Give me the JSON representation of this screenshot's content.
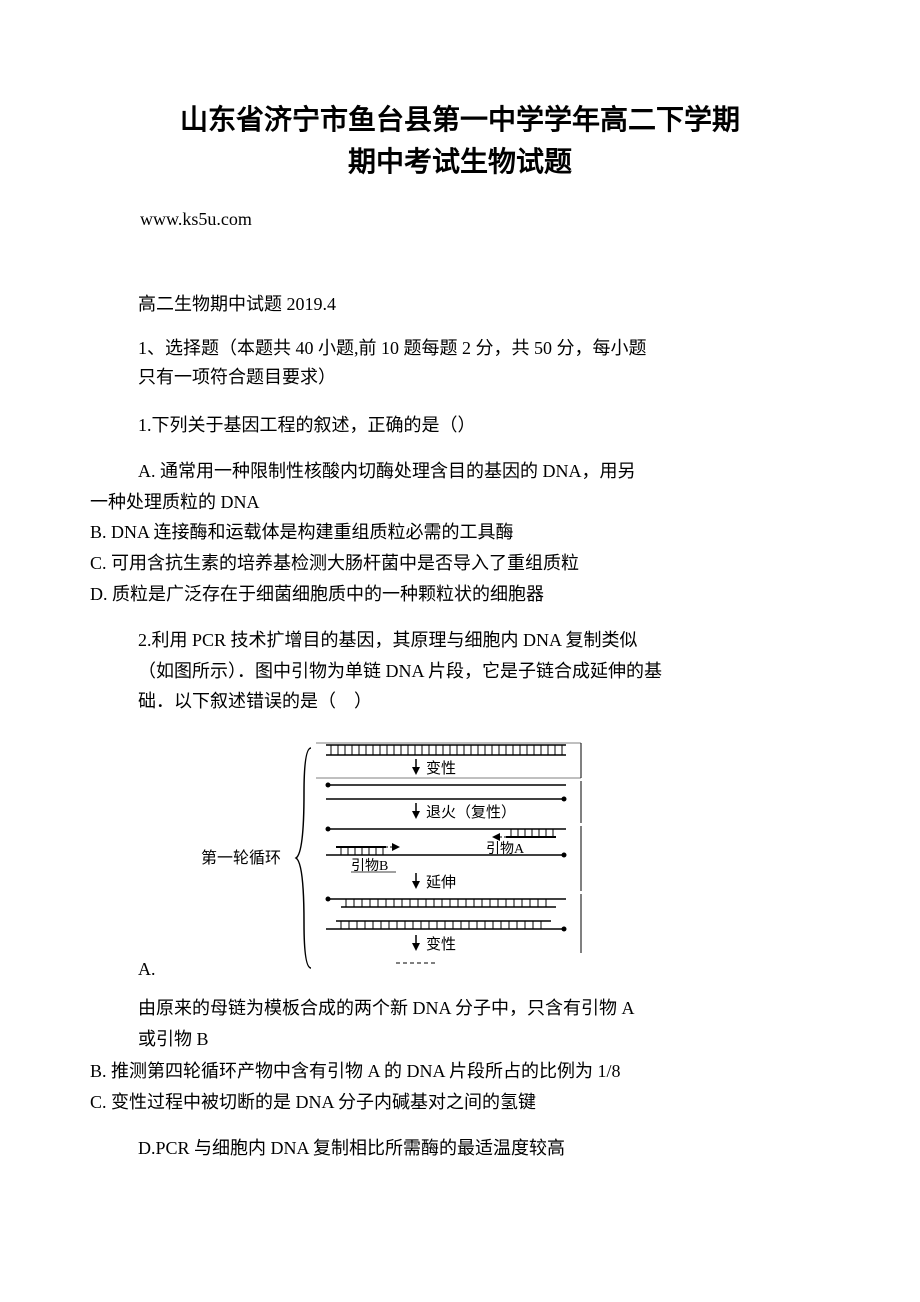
{
  "title": "山东省济宁市鱼台县第一中学学年高二下学期\n期中考试生物试题",
  "url": "www.ks5u.com",
  "subtitle": "高二生物期中试题 2019.4",
  "section_header": "1、选择题（本题共 40 小题,前 10 题每题 2 分，共 50 分，每小题\n只有一项符合题目要求）",
  "q1": {
    "stem": "1.下列关于基因工程的叙述，正确的是（）",
    "opt_a_line1": "A. 通常用一种限制性核酸内切酶处理含目的基因的 DNA，用另",
    "opt_a_line2": "一种处理质粒的 DNA",
    "opt_b": "B. DNA 连接酶和运载体是构建重组质粒必需的工具酶",
    "opt_c": "C. 可用含抗生素的培养基检测大肠杆菌中是否导入了重组质粒",
    "opt_d": "D. 质粒是广泛存在于细菌细胞质中的一种颗粒状的细胞器"
  },
  "q2": {
    "stem": "2.利用 PCR 技术扩增目的基因，其原理与细胞内 DNA 复制类似\n（如图所示）．图中引物为单链 DNA 片段，它是子链合成延伸的基\n础．以下叙述错误的是（　）",
    "diagram_a_label": "A.",
    "opt_a_content": "由原来的母链为模板合成的两个新 DNA 分子中，只含有引物 A\n或引物 B",
    "opt_b": "B. 推测第四轮循环产物中含有引物 A 的 DNA 片段所占的比例为 1/8",
    "opt_c": "C. 变性过程中被切断的是 DNA 分子内碱基对之间的氢键",
    "opt_d": "D.PCR 与细胞内 DNA 复制相比所需酶的最适温度较高"
  },
  "diagram": {
    "cycle_label": "第一轮循环",
    "step1": "变性",
    "step2": "退火（复性）",
    "primer_b": "引物B",
    "primer_a": "引物A",
    "step3": "延伸",
    "step4": "变性",
    "colors": {
      "line": "#000000",
      "text": "#000000",
      "bg": "#ffffff"
    }
  }
}
